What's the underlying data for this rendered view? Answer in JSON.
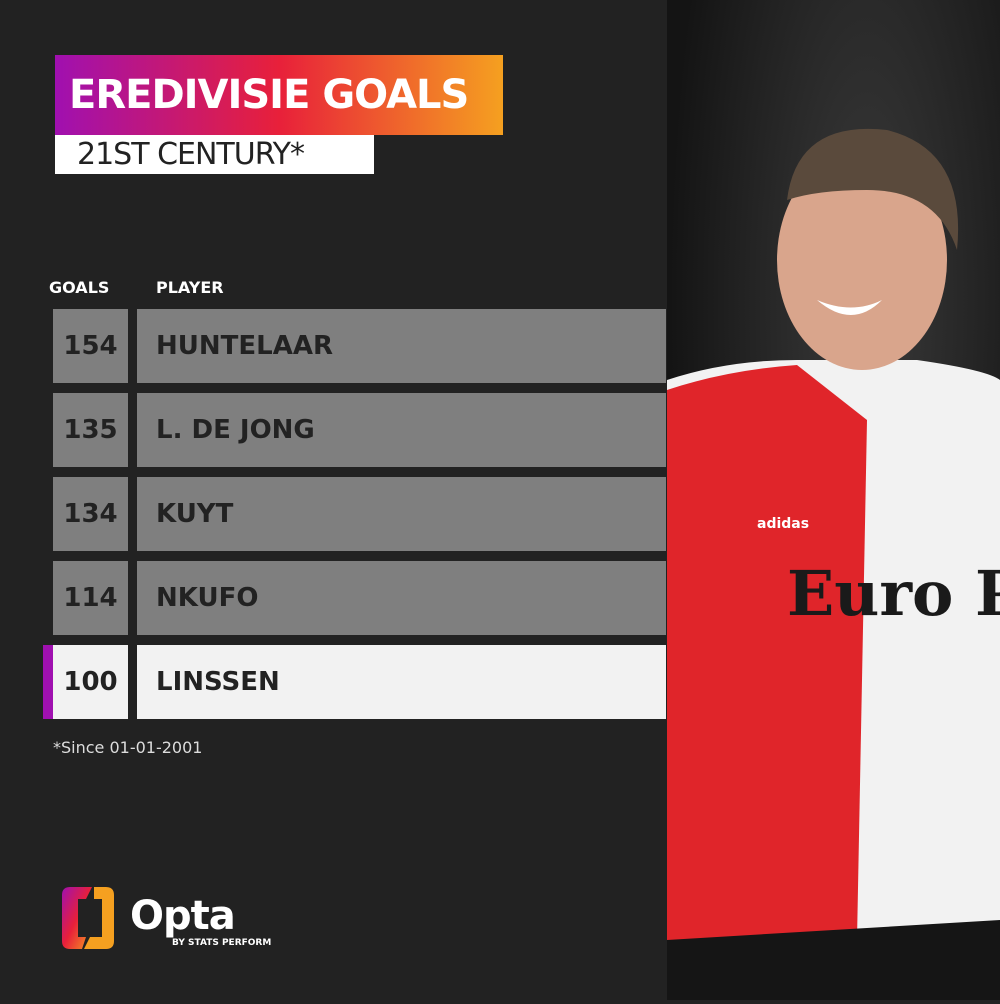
{
  "title": "EREDIVISIE GOALS",
  "subtitle": "21ST CENTURY*",
  "table": {
    "headers": {
      "goals": "GOALS",
      "player": "PLAYER"
    },
    "rows": [
      {
        "goals": "154",
        "player": "HUNTELAAR"
      },
      {
        "goals": "135",
        "player": "L. DE JONG"
      },
      {
        "goals": "134",
        "player": "KUYT"
      },
      {
        "goals": "114",
        "player": "NKUFO"
      },
      {
        "goals": "100",
        "player": "LINSSEN",
        "highlighted": true
      }
    ]
  },
  "footnote": "*Since 01-01-2001",
  "logo": {
    "name": "Opta",
    "tagline": "BY STATS PERFORM"
  },
  "photo": {
    "shirt_text": "Euro Parcs",
    "brand": "adidas"
  },
  "colors": {
    "background": "#222222",
    "row": "#7f7f7f",
    "highlight": "#f2f2f2",
    "accent": "#a010b0",
    "gradient": [
      "#a010b0",
      "#e8203a",
      "#f5a020"
    ]
  }
}
